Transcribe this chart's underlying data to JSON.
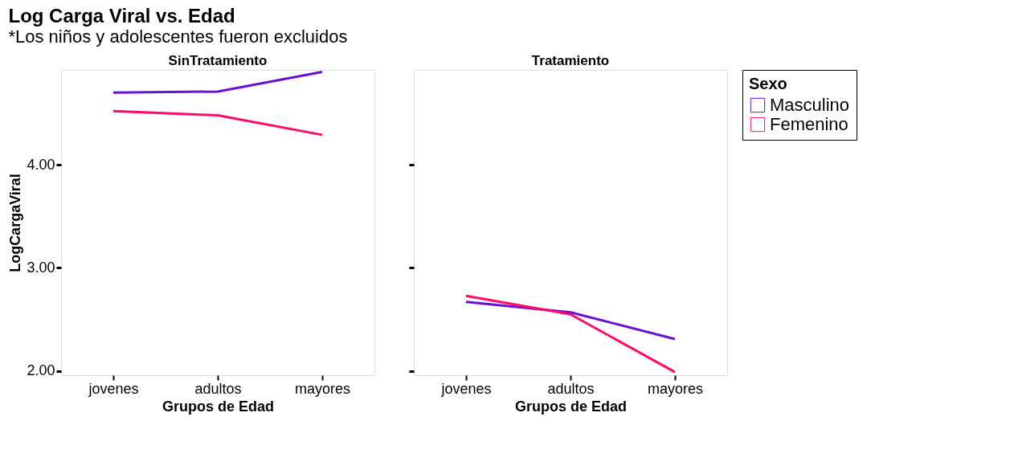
{
  "chart_data": [
    {
      "type": "line",
      "title": "SinTratamiento",
      "xlabel": "Grupos de Edad",
      "ylabel": "LogCargaViral",
      "legend_title": "Sexo",
      "legend": "right",
      "grid": false,
      "annotations": [
        "Log Carga Viral vs. Edad",
        "*Los niños y adolescentes fueron excluidos"
      ],
      "categories": [
        "jovenes",
        "adultos",
        "mayores"
      ],
      "ylim": [
        1.96,
        4.92
      ],
      "yticks": [
        {
          "value": 2,
          "label": "2.00"
        },
        {
          "value": 3,
          "label": "3.00"
        },
        {
          "value": 4,
          "label": "4.00"
        }
      ],
      "series": [
        {
          "name": "Masculino",
          "color": "#6a0fd6",
          "values": [
            4.7,
            4.71,
            4.9
          ]
        },
        {
          "name": "Femenino",
          "color": "#ff0a6a",
          "values": [
            4.52,
            4.48,
            4.29
          ]
        }
      ]
    },
    {
      "type": "line",
      "title": "Tratamiento",
      "xlabel": "Grupos de Edad",
      "grid": false,
      "tick_labels": "x",
      "categories": [
        "jovenes",
        "adultos",
        "mayores"
      ],
      "ylim": [
        1.96,
        4.92
      ],
      "yticks": [
        2,
        3,
        4
      ],
      "series": [
        {
          "name": "Masculino",
          "color": "#6a0fd6",
          "values": [
            2.67,
            2.57,
            2.31
          ]
        },
        {
          "name": "Femenino",
          "color": "#ff0a6a",
          "values": [
            2.73,
            2.55,
            1.99
          ]
        }
      ]
    }
  ]
}
